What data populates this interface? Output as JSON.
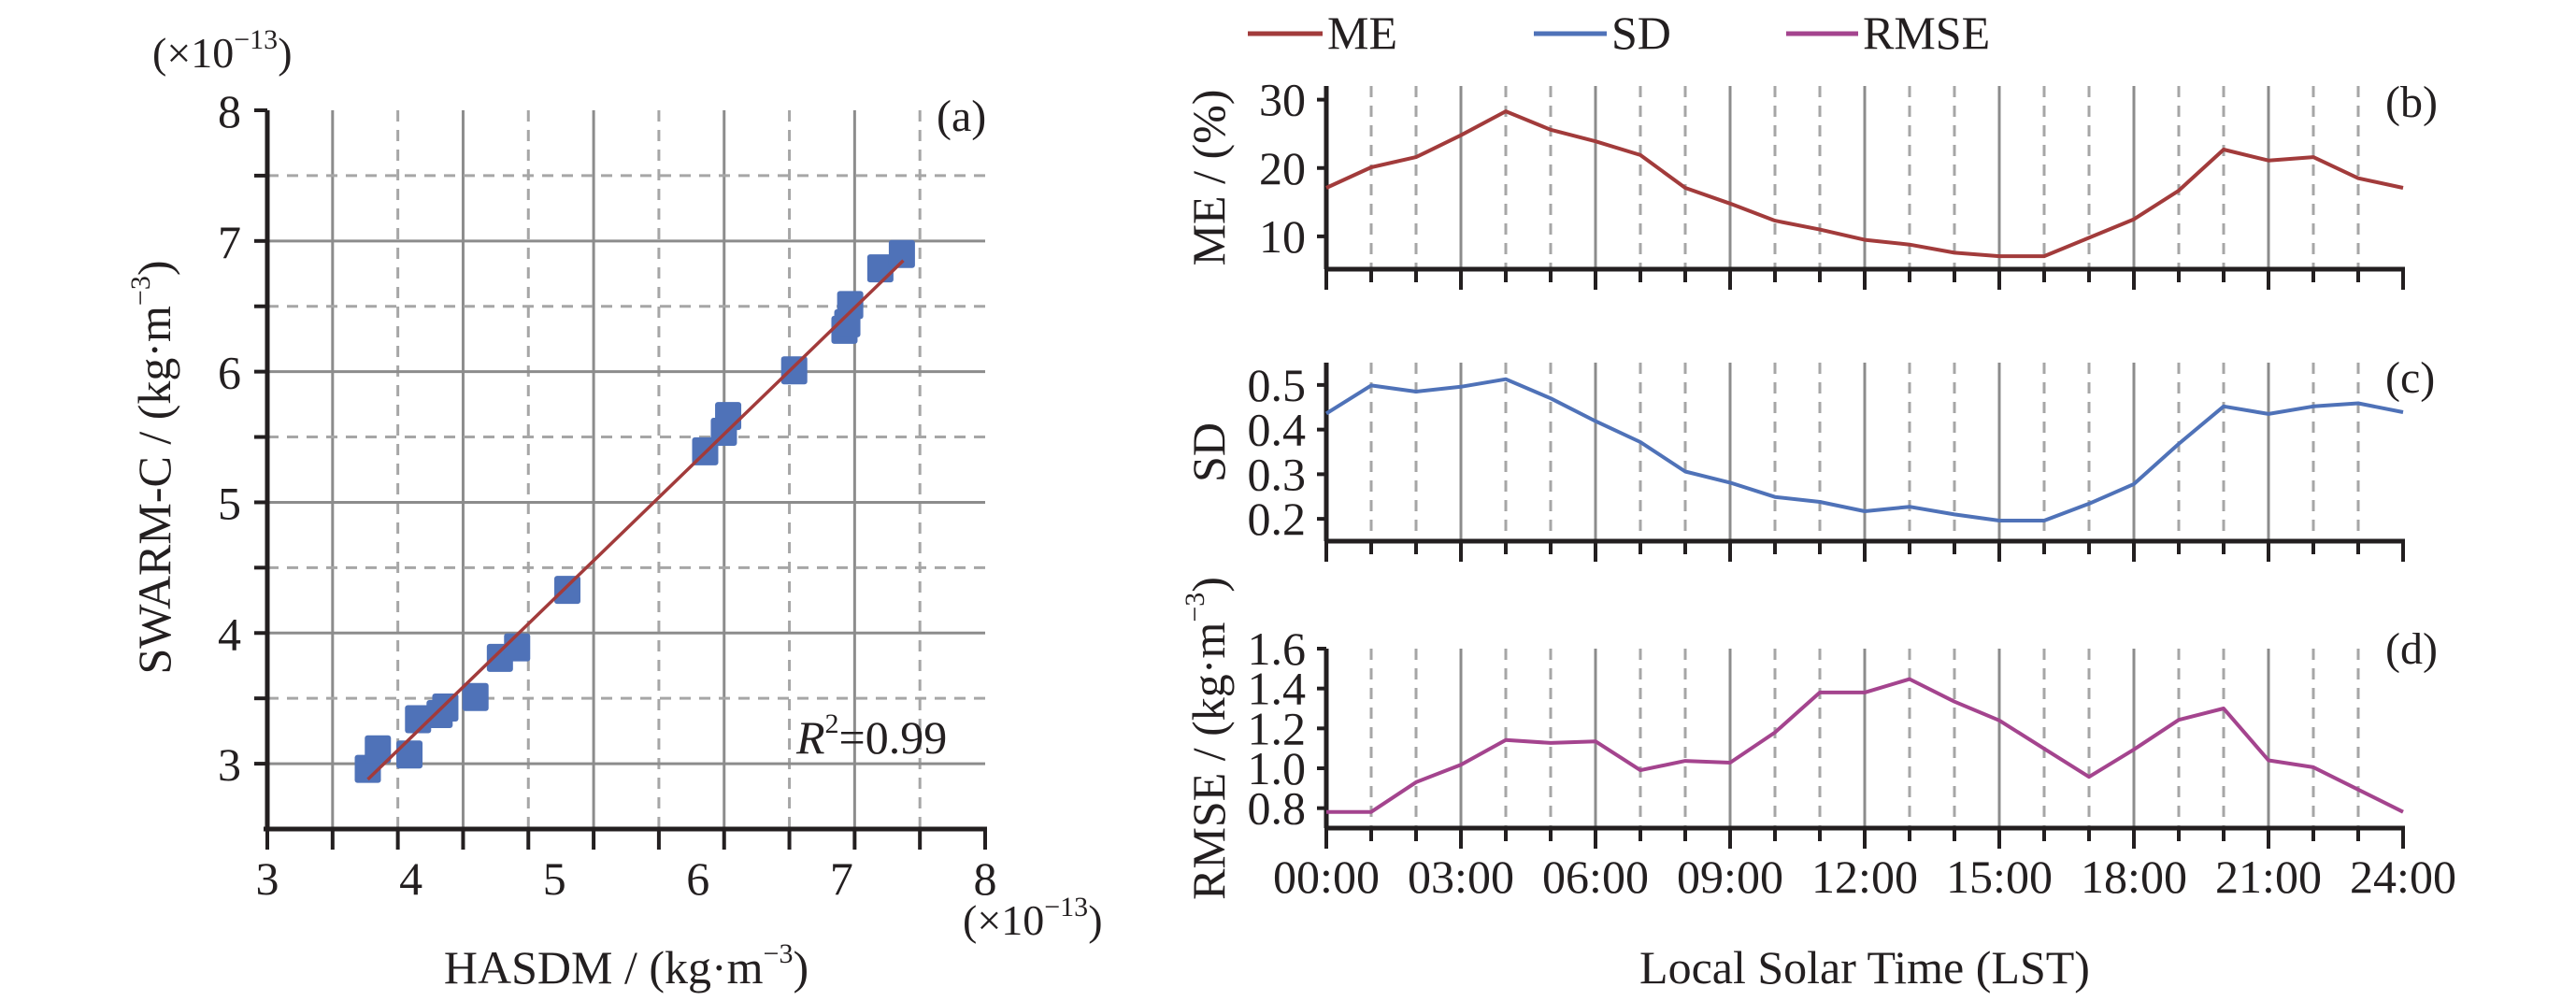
{
  "chart_data": [
    {
      "panel": "(a)",
      "type": "scatter",
      "x_multiplier": "(×10",
      "x_multiplier_exp": "−13",
      "x_multiplier_close": ")",
      "y_multiplier": "(×10",
      "y_multiplier_exp": "−13",
      "y_multiplier_close": ")",
      "xlabel": "HASDM / (kg·m",
      "xlabel_exp": "−3",
      "xlabel_close": ")",
      "ylabel": "SWARM-C / (kg·m",
      "ylabel_exp": "−3",
      "ylabel_close": ")",
      "xlim": [
        3,
        8
      ],
      "ylim": [
        2.5,
        8
      ],
      "x_ticks": [
        "3",
        "4",
        "5",
        "6",
        "7",
        "8"
      ],
      "y_ticks": [
        "3",
        "4",
        "5",
        "6",
        "7",
        "8"
      ],
      "y_tick_values": [
        3,
        4,
        5,
        6,
        7,
        8
      ],
      "grid": true,
      "annotation": {
        "r_label": "R",
        "r_exp": "2",
        "r_value": "=0.99"
      },
      "points": [
        {
          "x": 3.7,
          "y": 2.96
        },
        {
          "x": 3.77,
          "y": 3.11
        },
        {
          "x": 3.99,
          "y": 3.07
        },
        {
          "x": 4.05,
          "y": 3.34
        },
        {
          "x": 4.2,
          "y": 3.38
        },
        {
          "x": 4.24,
          "y": 3.43
        },
        {
          "x": 4.45,
          "y": 3.51
        },
        {
          "x": 4.62,
          "y": 3.81
        },
        {
          "x": 4.74,
          "y": 3.89
        },
        {
          "x": 5.09,
          "y": 4.33
        },
        {
          "x": 6.05,
          "y": 5.39
        },
        {
          "x": 6.18,
          "y": 5.54
        },
        {
          "x": 6.21,
          "y": 5.66
        },
        {
          "x": 6.67,
          "y": 6.01
        },
        {
          "x": 7.02,
          "y": 6.32
        },
        {
          "x": 7.04,
          "y": 6.37
        },
        {
          "x": 7.06,
          "y": 6.51
        },
        {
          "x": 7.27,
          "y": 6.79
        },
        {
          "x": 7.42,
          "y": 6.9
        }
      ],
      "fit_line": {
        "x": [
          3.7,
          7.43
        ],
        "y": [
          2.88,
          6.85
        ]
      },
      "colors": {
        "points": "#4f72b8",
        "fit": "#a23b3b"
      }
    },
    {
      "panel": "(b)",
      "type": "line",
      "series_name": "ME",
      "ylabel": "ME / (%)",
      "ylim": [
        5.2,
        32
      ],
      "y_ticks": [
        "10",
        "20",
        "30"
      ],
      "y_tick_values": [
        10,
        20,
        30
      ],
      "color": "#a23b3b",
      "values": [
        17.1,
        20.1,
        21.6,
        24.8,
        28.3,
        25.6,
        23.9,
        21.9,
        17.1,
        14.8,
        12.3,
        11.0,
        9.5,
        8.8,
        7.6,
        7.1,
        7.1,
        9.8,
        12.5,
        16.7,
        22.7,
        21.1,
        21.6,
        18.5,
        17.1
      ]
    },
    {
      "panel": "(c)",
      "type": "line",
      "series_name": "SD",
      "ylabel": "SD",
      "ylim": [
        0.15,
        0.55
      ],
      "y_ticks": [
        "0.2",
        "0.3",
        "0.4",
        "0.5"
      ],
      "y_tick_values": [
        0.2,
        0.3,
        0.4,
        0.5
      ],
      "color": "#4f72b8",
      "values": [
        0.436,
        0.499,
        0.485,
        0.496,
        0.513,
        0.47,
        0.419,
        0.372,
        0.306,
        0.281,
        0.249,
        0.238,
        0.217,
        0.227,
        0.21,
        0.196,
        0.196,
        0.234,
        0.278,
        0.368,
        0.452,
        0.435,
        0.452,
        0.459,
        0.439
      ]
    },
    {
      "panel": "(d)",
      "type": "line",
      "series_name": "RMSE",
      "ylabel": "RMSE / (kg·m",
      "ylabel_exp": "−3",
      "ylabel_close": ")",
      "ylim": [
        0.7,
        1.6
      ],
      "y_ticks": [
        "0.8",
        "1.0",
        "1.2",
        "1.4",
        "1.6"
      ],
      "y_tick_values": [
        0.8,
        1.0,
        1.2,
        1.4,
        1.6
      ],
      "color": "#a4448e",
      "values": [
        0.781,
        0.781,
        0.93,
        1.018,
        1.142,
        1.127,
        1.135,
        0.99,
        1.037,
        1.028,
        1.18,
        1.38,
        1.38,
        1.447,
        1.334,
        1.24,
        1.098,
        0.957,
        1.094,
        1.243,
        1.3,
        1.04,
        1.005,
        0.893,
        0.781
      ]
    }
  ],
  "shared_x": {
    "hours": [
      0,
      1,
      2,
      3,
      4,
      5,
      6,
      7,
      8,
      9,
      10,
      11,
      12,
      13,
      14,
      15,
      16,
      17,
      18,
      19,
      20,
      21,
      22,
      23,
      24
    ],
    "tick_labels": [
      "00:00",
      "03:00",
      "06:00",
      "09:00",
      "12:00",
      "15:00",
      "18:00",
      "21:00",
      "24:00"
    ],
    "xlabel": "Local Solar Time (LST)"
  },
  "legend": [
    {
      "label": "ME",
      "color": "#a23b3b"
    },
    {
      "label": "SD",
      "color": "#4f72b8"
    },
    {
      "label": "RMSE",
      "color": "#a4448e"
    }
  ]
}
